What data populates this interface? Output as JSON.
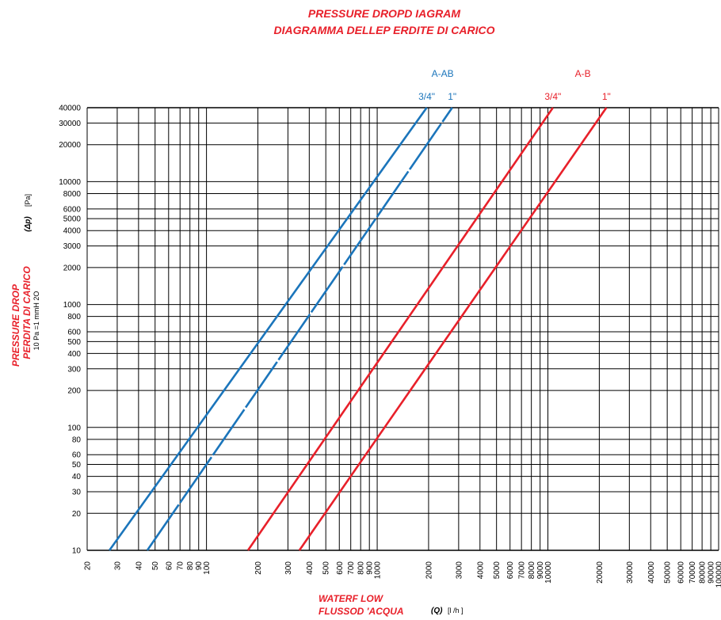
{
  "chart_data": {
    "type": "line",
    "title_line1": "PRESSURE DROPD IAGRAM",
    "title_line2": "DIAGRAMMA DELLEP ERDITE DI CARICO",
    "x_axis": {
      "label_line1": "WATERF LOW",
      "label_line2": "FLUSSOD 'ACQUA",
      "symbol": "(Q)",
      "unit": "[l /h ]",
      "scale": "log",
      "range": [
        20,
        100000
      ],
      "ticks": [
        "20",
        "30",
        "40",
        "50",
        "60",
        "70",
        "80",
        "90",
        "100",
        "200",
        "300",
        "400",
        "500",
        "600",
        "700",
        "800",
        "900",
        "1000",
        "2000",
        "3000",
        "4000",
        "5000",
        "6000",
        "7000",
        "8000",
        "9000",
        "10000",
        "20000",
        "30000",
        "40000",
        "50000",
        "60000",
        "70000",
        "80000",
        "90000",
        "100000"
      ]
    },
    "y_axis": {
      "label_line1": "PRESSURE DROP",
      "label_line2": "PERDITA DI CARICO",
      "symbol": "(Δp)",
      "unit": "[Pa]",
      "note": "10 Pa =1  mmH 2O",
      "scale": "log",
      "range": [
        10,
        40000
      ],
      "ticks": [
        "10",
        "20",
        "30",
        "40",
        "50",
        "60",
        "80",
        "100",
        "200",
        "300",
        "400",
        "500",
        "600",
        "800",
        "1000",
        "2000",
        "3000",
        "4000",
        "5000",
        "6000",
        "8000",
        "10000",
        "20000",
        "30000",
        "40000"
      ]
    },
    "groups": [
      {
        "name": "A-AB",
        "color": "#1b75bb"
      },
      {
        "name": "A-B",
        "color": "#e8202a"
      }
    ],
    "series": [
      {
        "name": "3/4\"",
        "group": 0,
        "color": "#1b75bb",
        "dashed_segments": false,
        "points": [
          [
            27,
            10
          ],
          [
            1950,
            40000
          ]
        ]
      },
      {
        "name": "1\"",
        "group": 0,
        "color": "#1b75bb",
        "dashed_segments": true,
        "points": [
          [
            45,
            10
          ],
          [
            2750,
            40000
          ]
        ]
      },
      {
        "name": "3/4\"",
        "group": 1,
        "color": "#e8202a",
        "dashed_segments": false,
        "points": [
          [
            175,
            10
          ],
          [
            10700,
            40000
          ]
        ]
      },
      {
        "name": "1\"",
        "group": 1,
        "color": "#e8202a",
        "dashed_segments": false,
        "points": [
          [
            350,
            10
          ],
          [
            22000,
            40000
          ]
        ]
      }
    ],
    "grid": true
  }
}
